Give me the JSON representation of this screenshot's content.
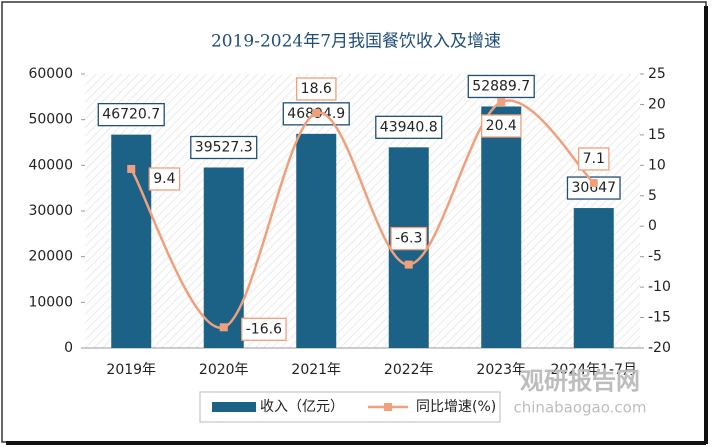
{
  "chart_data": {
    "type": "bar",
    "title": "2019-2024年7月我国餐饮收入及增速",
    "categories": [
      "2019年",
      "2020年",
      "2021年",
      "2022年",
      "2023年",
      "2024年1-7月"
    ],
    "series": [
      {
        "name": "收入（亿元）",
        "type": "bar",
        "color": "#1c6286",
        "values": [
          46720.7,
          39527.3,
          46894.9,
          43940.8,
          52889.7,
          30647
        ]
      },
      {
        "name": "同比增速(%)",
        "type": "line",
        "axis": "y2",
        "color": "#f0a07c",
        "values": [
          9.4,
          -16.6,
          18.6,
          -6.3,
          20.4,
          7.1
        ]
      }
    ],
    "ylim": [
      0,
      60000
    ],
    "yticks": [
      0,
      10000,
      20000,
      30000,
      40000,
      50000,
      60000
    ],
    "y2lim": [
      -20,
      25
    ],
    "y2ticks": [
      -20,
      -15,
      -10,
      -5,
      0,
      5,
      10,
      15,
      20,
      25
    ],
    "watermark": [
      "观研报告网",
      "chinabaogao.com"
    ]
  }
}
